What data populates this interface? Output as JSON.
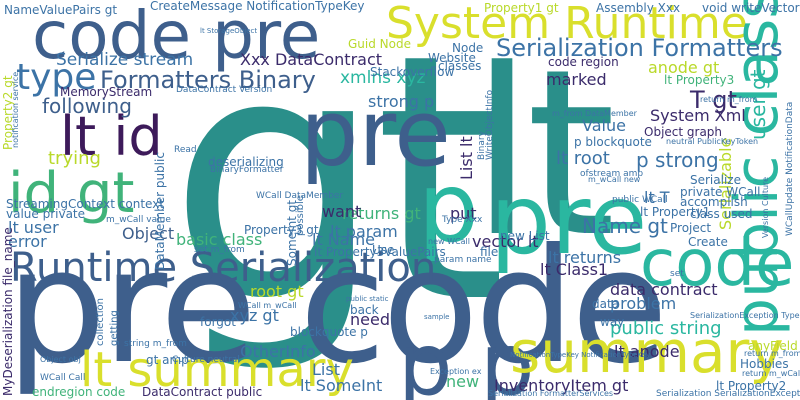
{
  "palette": {
    "teal": "#2a8f8a",
    "blue": "#3e5f8c",
    "navy": "#3b2b6b",
    "dark": "#3d1a5a",
    "green": "#40b37a",
    "lime": "#b9d92a",
    "yellow": "#d9df2c",
    "mint": "#2ab7a0",
    "steel": "#3c73a6",
    "lightgreen": "#5bc168"
  },
  "words": [
    {
      "text": "gt",
      "color": "teal"
    },
    {
      "text": "lt",
      "color": "teal"
    },
    {
      "text": "pre",
      "color": "blue"
    },
    {
      "text": "code",
      "color": "blue"
    },
    {
      "text": "pre",
      "color": "blue"
    },
    {
      "text": "pre",
      "color": "blue"
    },
    {
      "text": "pre",
      "color": "mint"
    },
    {
      "text": "p",
      "color": "mint"
    },
    {
      "text": "p",
      "color": "blue"
    },
    {
      "text": "code pre",
      "color": "blue"
    },
    {
      "text": "System Runtime",
      "color": "yellow"
    },
    {
      "text": "Runtime Serialization",
      "color": "blue"
    },
    {
      "text": "code",
      "color": "mint"
    },
    {
      "text": "public class",
      "color": "mint"
    },
    {
      "text": "summary gt",
      "color": "yellow"
    },
    {
      "text": "lt summary",
      "color": "yellow"
    },
    {
      "text": "id gt",
      "color": "green"
    },
    {
      "text": "lt id",
      "color": "dark"
    },
    {
      "text": "type",
      "color": "steel"
    },
    {
      "text": "Serialization Formatters",
      "color": "steel"
    },
    {
      "text": "Formatters Binary",
      "color": "blue"
    },
    {
      "text": "Serialize stream",
      "color": "steel"
    },
    {
      "text": "Xxx DataContract",
      "color": "navy"
    },
    {
      "text": "xmlns xyz",
      "color": "mint"
    },
    {
      "text": "following",
      "color": "blue"
    },
    {
      "text": "trying",
      "color": "lime"
    },
    {
      "text": "T gt",
      "color": "navy"
    },
    {
      "text": "anode gt",
      "color": "lime"
    },
    {
      "text": "user gt",
      "color": "mint"
    },
    {
      "text": "Serializable",
      "color": "lime"
    },
    {
      "text": "System Xml",
      "color": "navy"
    },
    {
      "text": "marked",
      "color": "navy"
    },
    {
      "text": "Value",
      "color": "steel"
    },
    {
      "text": "lt root",
      "color": "steel"
    },
    {
      "text": "lt param",
      "color": "steel"
    },
    {
      "text": "returns gt",
      "color": "green"
    },
    {
      "text": "p strong",
      "color": "steel"
    },
    {
      "text": "lt T",
      "color": "steel"
    },
    {
      "text": "lt user",
      "color": "steel"
    },
    {
      "text": "error",
      "color": "steel"
    },
    {
      "text": "Object",
      "color": "blue"
    },
    {
      "text": "basic class",
      "color": "green"
    },
    {
      "text": "lt Name",
      "color": "steel"
    },
    {
      "text": "want",
      "color": "navy"
    },
    {
      "text": "put",
      "color": "navy"
    },
    {
      "text": "Name gt",
      "color": "steel"
    },
    {
      "text": "vector lt",
      "color": "navy"
    },
    {
      "text": "lt returns",
      "color": "steel"
    },
    {
      "text": "lt Class1",
      "color": "navy"
    },
    {
      "text": "data contract",
      "color": "navy"
    },
    {
      "text": "problem",
      "color": "steel"
    },
    {
      "text": "public string",
      "color": "mint"
    },
    {
      "text": "lt anode",
      "color": "navy"
    },
    {
      "text": "root gt",
      "color": "lime"
    },
    {
      "text": "xyz gt",
      "color": "steel"
    },
    {
      "text": "OtherInfo",
      "color": "steel"
    },
    {
      "text": "need",
      "color": "navy"
    },
    {
      "text": "lt SomeInt",
      "color": "steel"
    },
    {
      "text": "List",
      "color": "steel"
    },
    {
      "text": "new",
      "color": "green"
    },
    {
      "text": "InventoryItem gt",
      "color": "navy"
    },
    {
      "text": "strong p",
      "color": "steel"
    },
    {
      "text": "List lt",
      "color": "navy"
    },
    {
      "text": "CreateMessage NotificationTypeKey",
      "color": "steel"
    },
    {
      "text": "NameValuePairs gt",
      "color": "steel"
    },
    {
      "text": "Property1 gt",
      "color": "lime"
    },
    {
      "text": "lt Property3",
      "color": "green"
    },
    {
      "text": "Object graph",
      "color": "navy"
    },
    {
      "text": "p blockquote",
      "color": "steel"
    },
    {
      "text": "lt Property1",
      "color": "steel"
    },
    {
      "text": "DataMember public",
      "color": "steel"
    },
    {
      "text": "SomeInt gt",
      "color": "steel"
    },
    {
      "text": "lt Property3ValuePairs",
      "color": "steel"
    },
    {
      "text": "Property3 gt",
      "color": "steel"
    },
    {
      "text": "gt amp",
      "color": "steel"
    },
    {
      "text": "endregion code",
      "color": "green"
    },
    {
      "text": "DataContract public",
      "color": "navy"
    },
    {
      "text": "MemoryStream",
      "color": "navy"
    },
    {
      "text": "StreamingContext context",
      "color": "steel"
    },
    {
      "text": "value private",
      "color": "steel"
    },
    {
      "text": "forgot",
      "color": "steel"
    },
    {
      "text": "blockquote p",
      "color": "steel"
    },
    {
      "text": "Use",
      "color": "steel"
    },
    {
      "text": "data",
      "color": "steel"
    },
    {
      "text": "Hobbies",
      "color": "steel"
    },
    {
      "text": "lt Property2",
      "color": "steel"
    },
    {
      "text": "anyField",
      "color": "lime"
    },
    {
      "text": "way",
      "color": "steel"
    },
    {
      "text": "accomplish",
      "color": "steel"
    },
    {
      "text": "code region",
      "color": "navy"
    },
    {
      "text": "Guid Node",
      "color": "lime"
    },
    {
      "text": "Stackoverflow",
      "color": "steel"
    },
    {
      "text": "Website",
      "color": "steel"
    },
    {
      "text": "classes",
      "color": "steel"
    },
    {
      "text": "Node",
      "color": "steel"
    },
    {
      "text": "void writeVector",
      "color": "steel"
    },
    {
      "text": "Assembly Xxx",
      "color": "steel"
    },
    {
      "text": "Serialize",
      "color": "steel"
    },
    {
      "text": "Project",
      "color": "steel"
    },
    {
      "text": "Create",
      "color": "steel"
    },
    {
      "text": "private WCall",
      "color": "steel"
    },
    {
      "text": "class used",
      "color": "steel"
    },
    {
      "text": "Property2 gt",
      "color": "lime"
    },
    {
      "text": "MyDeserialization file_name",
      "color": "navy"
    },
    {
      "text": "deserializing",
      "color": "steel"
    },
    {
      "text": "BinaryFormatter",
      "color": "steel"
    },
    {
      "text": "possible",
      "color": "steel"
    },
    {
      "text": "collection",
      "color": "steel"
    },
    {
      "text": "getting",
      "color": "steel"
    },
    {
      "text": "back",
      "color": "steel"
    },
    {
      "text": "Culture neutral",
      "color": "steel"
    },
    {
      "text": "file",
      "color": "steel"
    },
    {
      "text": "new List",
      "color": "steel"
    },
    {
      "text": "WCall Call",
      "color": "steel"
    },
    {
      "text": "Exception ex",
      "color": "steel"
    },
    {
      "text": "Serialization SerializationException",
      "color": "steel"
    },
    {
      "text": "Serialization FormatterServices",
      "color": "steel"
    },
    {
      "text": "NotificationTypeKey NotificationTypeKey",
      "color": "steel"
    },
    {
      "text": "param name",
      "color": "steel"
    },
    {
      "text": "ofstream amp",
      "color": "steel"
    },
    {
      "text": "return m_from",
      "color": "steel"
    },
    {
      "text": "WriteObjectInfo",
      "color": "steel"
    },
    {
      "text": "Binary",
      "color": "steel"
    },
    {
      "text": "Read",
      "color": "steel"
    },
    {
      "text": "Type Xxx",
      "color": "steel"
    },
    {
      "text": "new WCall",
      "color": "steel"
    },
    {
      "text": "m_wCall new",
      "color": "steel"
    },
    {
      "text": "set m_from",
      "color": "steel"
    },
    {
      "text": "Version Culture",
      "color": "steel"
    },
    {
      "text": "WCallUpdate NotificationData",
      "color": "steel"
    },
    {
      "text": "DataContract Version",
      "color": "steel"
    },
    {
      "text": "m_wCall value",
      "color": "steel"
    },
    {
      "text": "neutral PublicKeyToken",
      "color": "steel"
    },
    {
      "text": "m_from DataMember",
      "color": "steel"
    },
    {
      "text": "lt StorageObject",
      "color": "steel"
    },
    {
      "text": "WCall DataMember",
      "color": "steel"
    },
    {
      "text": "string m_from",
      "color": "steel"
    },
    {
      "text": "Object obj",
      "color": "steel"
    },
    {
      "text": "notification service",
      "color": "steel"
    },
    {
      "text": "set",
      "color": "steel"
    },
    {
      "text": "public WCall",
      "color": "steel"
    },
    {
      "text": "WCall m_wCall",
      "color": "steel"
    },
    {
      "text": "sample",
      "color": "steel"
    },
    {
      "text": "public static",
      "color": "steel"
    },
    {
      "text": "SerializationException Type",
      "color": "steel"
    },
    {
      "text": "return m_wCall",
      "color": "steel"
    },
    {
      "text": "return m_from",
      "color": "steel"
    }
  ]
}
